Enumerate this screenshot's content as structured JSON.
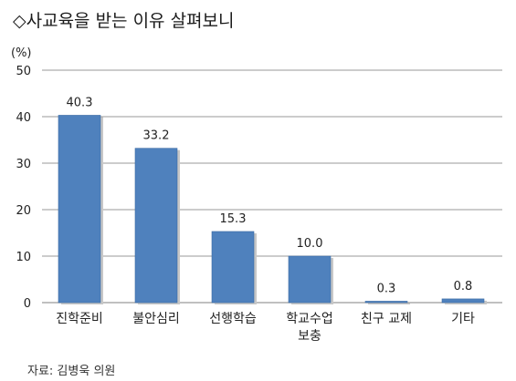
{
  "header": {
    "title": "◇사교육을 받는 이유 살펴보니"
  },
  "footer": {
    "source": "자료: 김병욱 의원"
  },
  "chart_data": {
    "type": "bar",
    "title": "◇사교육을 받는 이유 살펴보니",
    "ylabel": "(%)",
    "xlabel": "",
    "categories": [
      [
        "진학준비"
      ],
      [
        "불안심리"
      ],
      [
        "선행학습"
      ],
      [
        "학교수업",
        "보충"
      ],
      [
        "친구 교제"
      ],
      [
        "기타"
      ]
    ],
    "values": [
      40.3,
      33.2,
      15.3,
      10.0,
      0.3,
      0.8
    ],
    "value_labels": [
      "40.3",
      "33.2",
      "15.3",
      "10.0",
      "0.3",
      "0.8"
    ],
    "ylim": [
      0,
      50
    ],
    "yticks": [
      0,
      10,
      20,
      30,
      40,
      50
    ],
    "grid": true,
    "legend": "none",
    "bar_color": "#4f81bd",
    "grid_color": "#9a9a9a"
  }
}
